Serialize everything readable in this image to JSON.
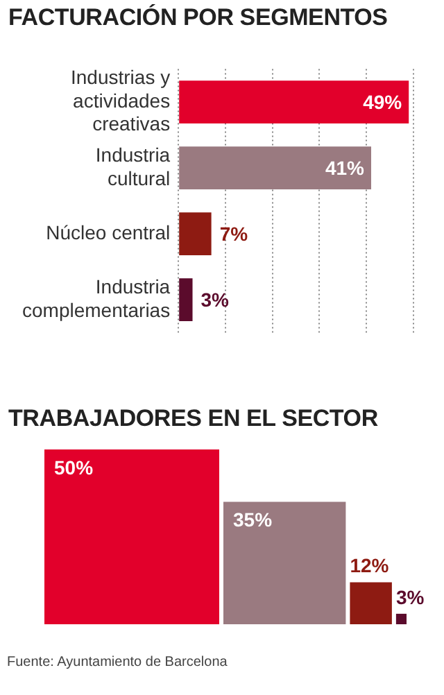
{
  "chart_data": [
    {
      "type": "bar",
      "title": "FACTURACIÓN POR SEGMENTOS",
      "orientation": "horizontal",
      "categories": [
        "Industrias y actividades creativas",
        "Industria cultural",
        "Núcleo central",
        "Industria complementarias"
      ],
      "values": [
        49,
        41,
        7,
        3
      ],
      "colors": [
        "#e2002b",
        "#9a7a80",
        "#8e1b12",
        "#5b0b2c"
      ],
      "value_labels": [
        "49%",
        "41%",
        "7%",
        "3%"
      ],
      "xlim": [
        0,
        50
      ],
      "xticks": [
        0,
        10,
        20,
        30,
        40,
        50
      ],
      "grid": "x",
      "tick_labels": "y"
    },
    {
      "type": "other",
      "title": "TRABAJADORES EN EL SECTOR",
      "values": [
        50,
        35,
        12,
        3
      ],
      "colors": [
        "#e2002b",
        "#9a7a80",
        "#8e1b12",
        "#5b0b2c"
      ],
      "value_labels": [
        "50%",
        "35%",
        "12%",
        "3%"
      ],
      "annotations": [
        "Fuente: Ayuntamiento de Barcelona"
      ]
    }
  ]
}
